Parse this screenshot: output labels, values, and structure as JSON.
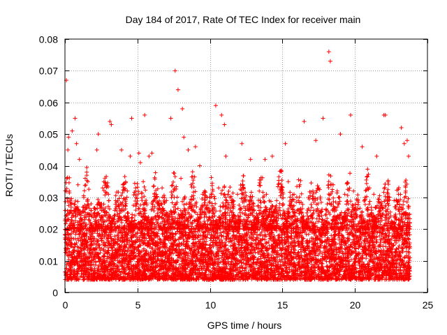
{
  "chart_data": {
    "type": "scatter",
    "title": "Day 184 of 2017, Rate Of TEC Index for receiver main",
    "xlabel": "GPS time / hours",
    "ylabel": "ROTI / TECUs",
    "xlim": [
      0,
      25
    ],
    "ylim": [
      0,
      0.08
    ],
    "xticks": [
      0,
      5,
      10,
      15,
      20,
      25
    ],
    "xtick_labels": [
      "0",
      "5",
      "10",
      "15",
      "20",
      "25"
    ],
    "yticks": [
      0,
      0.01,
      0.02,
      0.03,
      0.04,
      0.05,
      0.06,
      0.07,
      0.08
    ],
    "ytick_labels": [
      "0",
      "0.01",
      "0.02",
      "0.03",
      "0.04",
      "0.05",
      "0.06",
      "0.07",
      "0.08"
    ],
    "grid": true,
    "marker": "+",
    "color": "#ff0000",
    "series": [
      {
        "name": "ROTI",
        "x": [
          0.1,
          0.2,
          0.25,
          0.5,
          0.7,
          0.8,
          1.0,
          1.5,
          2.2,
          2.3,
          3.1,
          3.2,
          3.9,
          4.5,
          4.6,
          5.1,
          5.2,
          5.5,
          5.8,
          6.0,
          7.3,
          7.6,
          7.8,
          8.1,
          8.2,
          8.5,
          9.0,
          9.3,
          10.4,
          10.8,
          11.0,
          11.1,
          12.2,
          12.8,
          13.8,
          14.3,
          15.2,
          16.5,
          17.3,
          17.8,
          18.2,
          18.3,
          19.0,
          19.7,
          20.5,
          21.5,
          22.0,
          22.1,
          23.2,
          23.4,
          23.6,
          23.7,
          0.3,
          0.9,
          1.3,
          1.8,
          2.6,
          3.0,
          3.5,
          4.0,
          4.3,
          4.9,
          5.4,
          6.3,
          6.7,
          7.0,
          7.5,
          8.0,
          8.7,
          9.5,
          9.8,
          10.2,
          10.6,
          11.5,
          11.9,
          12.4,
          13.0,
          13.4,
          13.9,
          14.6,
          14.9,
          15.4,
          15.8,
          16.2,
          16.8,
          17.1,
          17.5,
          18.5,
          18.9,
          19.3,
          19.9,
          20.2,
          20.7,
          21.0,
          21.3,
          21.8,
          22.3,
          22.7,
          23.0,
          23.5,
          0.4,
          0.6,
          1.1,
          1.6,
          2.0,
          2.4,
          2.8,
          3.3,
          3.7,
          4.1,
          4.7,
          5.0,
          5.6,
          6.1,
          6.5,
          6.9,
          7.2,
          7.7,
          8.3,
          8.8,
          9.2,
          9.6,
          10.0,
          10.5,
          11.2,
          11.7,
          12.0,
          12.6,
          13.2,
          13.6,
          14.1,
          14.5,
          15.0,
          15.6,
          16.0,
          16.6,
          17.0,
          17.6,
          18.1,
          18.7,
          19.1,
          19.5,
          20.0,
          20.4,
          20.9,
          21.2,
          21.7,
          22.2,
          22.5,
          22.9,
          23.3,
          23.8
        ],
        "y": [
          0.067,
          0.045,
          0.049,
          0.051,
          0.055,
          0.047,
          0.042,
          0.038,
          0.045,
          0.05,
          0.054,
          0.053,
          0.045,
          0.043,
          0.055,
          0.044,
          0.041,
          0.056,
          0.043,
          0.044,
          0.055,
          0.07,
          0.064,
          0.058,
          0.049,
          0.045,
          0.046,
          0.04,
          0.059,
          0.056,
          0.053,
          0.043,
          0.047,
          0.042,
          0.042,
          0.043,
          0.047,
          0.054,
          0.048,
          0.055,
          0.076,
          0.073,
          0.05,
          0.056,
          0.046,
          0.043,
          0.056,
          0.056,
          0.052,
          0.047,
          0.048,
          0.043,
          0.032,
          0.034,
          0.03,
          0.028,
          0.033,
          0.031,
          0.029,
          0.034,
          0.032,
          0.03,
          0.035,
          0.031,
          0.033,
          0.029,
          0.032,
          0.036,
          0.034,
          0.031,
          0.03,
          0.032,
          0.033,
          0.029,
          0.031,
          0.03,
          0.028,
          0.032,
          0.031,
          0.029,
          0.033,
          0.035,
          0.031,
          0.034,
          0.03,
          0.032,
          0.033,
          0.034,
          0.03,
          0.031,
          0.032,
          0.029,
          0.03,
          0.033,
          0.031,
          0.028,
          0.03,
          0.029,
          0.031,
          0.032,
          0.012,
          0.01,
          0.014,
          0.009,
          0.011,
          0.015,
          0.013,
          0.01,
          0.012,
          0.016,
          0.011,
          0.009,
          0.013,
          0.012,
          0.01,
          0.014,
          0.011,
          0.013,
          0.015,
          0.012,
          0.01,
          0.014,
          0.011,
          0.009,
          0.012,
          0.013,
          0.01,
          0.011,
          0.014,
          0.012,
          0.01,
          0.013,
          0.015,
          0.011,
          0.012,
          0.014,
          0.01,
          0.013,
          0.011,
          0.012,
          0.01,
          0.014,
          0.013,
          0.011,
          0.009,
          0.012,
          0.01,
          0.013,
          0.011,
          0.012,
          0.01,
          0.011
        ]
      }
    ],
    "distribution": {
      "x_range": [
        0,
        23.8
      ],
      "dense_band": [
        0.004,
        0.02
      ],
      "typical_max": 0.035,
      "peak_value": 0.076,
      "peak_time": 18.2
    }
  }
}
